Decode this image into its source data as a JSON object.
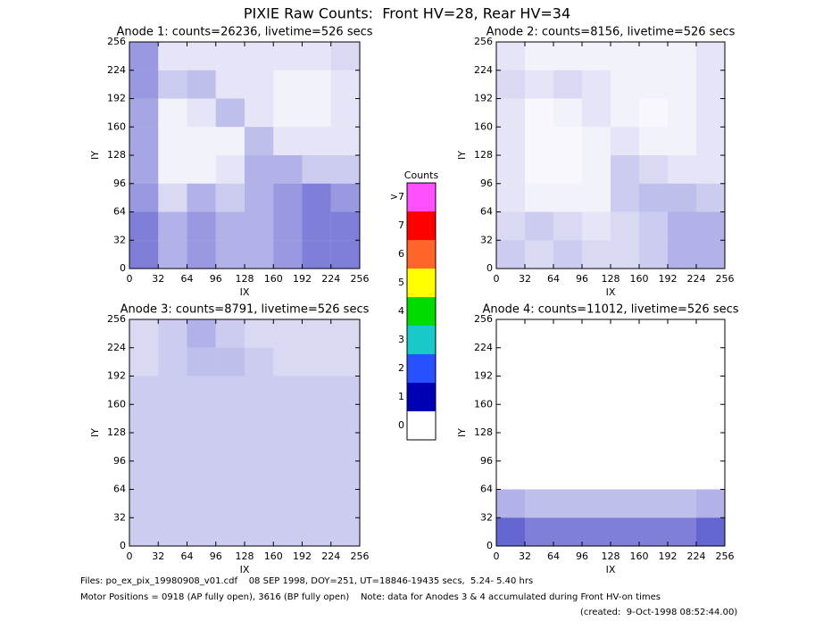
{
  "title": "PIXIE Raw Counts:  Front HV=28, Rear HV=34",
  "chart_data": [
    {
      "type": "heatmap",
      "title": "Anode 1: counts=26236, livetime=526 secs",
      "xlabel": "IX",
      "ylabel": "IY",
      "xlim": [
        0,
        256
      ],
      "ylim": [
        0,
        256
      ],
      "xticks": [
        0,
        32,
        64,
        96,
        128,
        160,
        192,
        224,
        256
      ],
      "yticks": [
        0,
        32,
        64,
        96,
        128,
        160,
        192,
        224,
        256
      ],
      "color": "#0000b4",
      "values": [
        [
          0.5,
          0.3,
          0.4,
          0.3,
          0.3,
          0.4,
          0.5,
          0.5
        ],
        [
          0.5,
          0.3,
          0.4,
          0.3,
          0.3,
          0.4,
          0.5,
          0.5
        ],
        [
          0.4,
          0.15,
          0.3,
          0.2,
          0.3,
          0.4,
          0.5,
          0.4
        ],
        [
          0.35,
          0.05,
          0.05,
          0.1,
          0.3,
          0.3,
          0.2,
          0.2
        ],
        [
          0.35,
          0.05,
          0.05,
          0.05,
          0.25,
          0.1,
          0.1,
          0.1
        ],
        [
          0.35,
          0.05,
          0.1,
          0.25,
          0.1,
          0.05,
          0.05,
          0.1
        ],
        [
          0.4,
          0.2,
          0.25,
          0.1,
          0.1,
          0.05,
          0.05,
          0.1
        ],
        [
          0.4,
          0.1,
          0.1,
          0.1,
          0.1,
          0.1,
          0.1,
          0.15
        ]
      ]
    },
    {
      "type": "heatmap",
      "title": "Anode 2: counts=8156, livetime=526 secs",
      "xlabel": "IX",
      "ylabel": "IY",
      "xlim": [
        0,
        256
      ],
      "ylim": [
        0,
        256
      ],
      "xticks": [
        0,
        32,
        64,
        96,
        128,
        160,
        192,
        224,
        256
      ],
      "yticks": [
        0,
        32,
        64,
        96,
        128,
        160,
        192,
        224,
        256
      ],
      "color": "#0000b4",
      "values": [
        [
          0.2,
          0.15,
          0.2,
          0.15,
          0.15,
          0.2,
          0.3,
          0.3
        ],
        [
          0.15,
          0.2,
          0.15,
          0.1,
          0.15,
          0.2,
          0.3,
          0.3
        ],
        [
          0.1,
          0.05,
          0.05,
          0.05,
          0.2,
          0.25,
          0.25,
          0.2
        ],
        [
          0.1,
          0.03,
          0.03,
          0.05,
          0.2,
          0.15,
          0.1,
          0.1
        ],
        [
          0.1,
          0.03,
          0.03,
          0.05,
          0.1,
          0.05,
          0.05,
          0.1
        ],
        [
          0.1,
          0.03,
          0.05,
          0.1,
          0.05,
          0.03,
          0.05,
          0.1
        ],
        [
          0.15,
          0.1,
          0.15,
          0.1,
          0.05,
          0.05,
          0.05,
          0.1
        ],
        [
          0.1,
          0.05,
          0.05,
          0.05,
          0.05,
          0.05,
          0.05,
          0.1
        ]
      ]
    },
    {
      "type": "heatmap",
      "title": "Anode 3: counts=8791, livetime=526 secs",
      "xlabel": "IX",
      "ylabel": "IY",
      "xlim": [
        0,
        256
      ],
      "ylim": [
        0,
        256
      ],
      "xticks": [
        0,
        32,
        64,
        96,
        128,
        160,
        192,
        224,
        256
      ],
      "yticks": [
        0,
        32,
        64,
        96,
        128,
        160,
        192,
        224,
        256
      ],
      "color": "#0000b4",
      "values": [
        [
          0.2,
          0.2,
          0.2,
          0.2,
          0.2,
          0.2,
          0.2,
          0.2
        ],
        [
          0.2,
          0.2,
          0.2,
          0.2,
          0.2,
          0.2,
          0.2,
          0.2
        ],
        [
          0.2,
          0.2,
          0.2,
          0.2,
          0.2,
          0.2,
          0.2,
          0.2
        ],
        [
          0.2,
          0.2,
          0.2,
          0.2,
          0.2,
          0.2,
          0.2,
          0.2
        ],
        [
          0.2,
          0.2,
          0.2,
          0.2,
          0.2,
          0.2,
          0.2,
          0.2
        ],
        [
          0.2,
          0.2,
          0.2,
          0.2,
          0.2,
          0.2,
          0.2,
          0.2
        ],
        [
          0.15,
          0.2,
          0.25,
          0.25,
          0.2,
          0.15,
          0.15,
          0.15
        ],
        [
          0.15,
          0.2,
          0.3,
          0.2,
          0.15,
          0.15,
          0.15,
          0.15
        ]
      ]
    },
    {
      "type": "heatmap",
      "title": "Anode 4: counts=11012, livetime=526 secs",
      "xlabel": "IX",
      "ylabel": "IY",
      "xlim": [
        0,
        256
      ],
      "ylim": [
        0,
        256
      ],
      "xticks": [
        0,
        32,
        64,
        96,
        128,
        160,
        192,
        224,
        256
      ],
      "yticks": [
        0,
        32,
        64,
        96,
        128,
        160,
        192,
        224,
        256
      ],
      "color": "#0000b4",
      "values": [
        [
          0.6,
          0.5,
          0.5,
          0.5,
          0.5,
          0.5,
          0.5,
          0.6
        ],
        [
          0.3,
          0.25,
          0.25,
          0.25,
          0.25,
          0.25,
          0.25,
          0.3
        ],
        [
          0,
          0,
          0,
          0,
          0,
          0,
          0,
          0
        ],
        [
          0,
          0,
          0,
          0,
          0,
          0,
          0,
          0
        ],
        [
          0,
          0,
          0,
          0,
          0,
          0,
          0,
          0
        ],
        [
          0,
          0,
          0,
          0,
          0,
          0,
          0,
          0
        ],
        [
          0,
          0,
          0,
          0,
          0,
          0,
          0,
          0
        ],
        [
          0,
          0,
          0,
          0,
          0,
          0,
          0,
          0
        ]
      ]
    }
  ],
  "colorbar": {
    "title": "Counts",
    "labels": [
      "0",
      "1",
      "2",
      "3",
      "4",
      "5",
      "6",
      "7",
      ">7"
    ],
    "colors": [
      "#ffffff",
      "#0000b4",
      "#2850ff",
      "#19c8c8",
      "#00dc00",
      "#ffff00",
      "#ff6428",
      "#ff0000",
      "#ff50ff"
    ]
  },
  "footer": {
    "files": "Files: po_ex_pix_19980908_v01.cdf    08 SEP 1998, DOY=251, UT=18846-19435 secs,  5.24- 5.40 hrs",
    "motor": "Motor Positions = 0918 (AP fully open), 3616 (BP fully open)    Note: data for Anodes 3 & 4 accumulated during Front HV-on times",
    "created": "(created:  9-Oct-1998 08:52:44.00)"
  }
}
